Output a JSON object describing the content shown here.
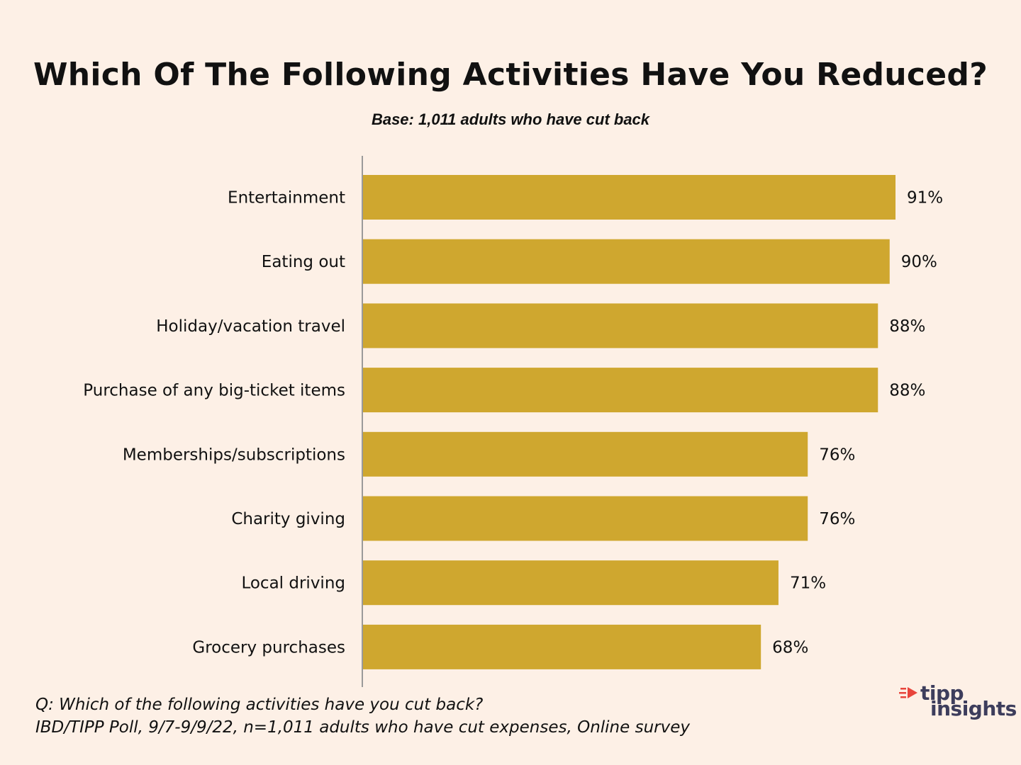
{
  "colors": {
    "background": "#fdf0e6",
    "bar": "#cfa72f",
    "axis": "#9a9a9a",
    "text": "#111111",
    "logo_text": "#3d3d5c",
    "logo_accent": "#e8453c"
  },
  "chart_data": {
    "type": "bar",
    "orientation": "horizontal",
    "title": "Which Of The Following Activities Have You Reduced?",
    "subtitle": "Base: 1,011 adults who have cut back",
    "categories": [
      "Entertainment",
      "Eating out",
      "Holiday/vacation travel",
      "Purchase of any big-ticket items",
      "Memberships/subscriptions",
      "Charity giving",
      "Local driving",
      "Grocery purchases"
    ],
    "values": [
      91,
      90,
      88,
      88,
      76,
      76,
      71,
      68
    ],
    "value_labels": [
      "91%",
      "90%",
      "88%",
      "88%",
      "76%",
      "76%",
      "71%",
      "68%"
    ],
    "xlim": [
      0,
      100
    ],
    "grid": false,
    "legend": "none"
  },
  "footnote": {
    "question": "Q:  Which of the following activities have you cut back?",
    "source": "IBD/TIPP Poll, 9/7-9/9/22, n=1,011 adults who have cut expenses, Online survey"
  },
  "logo": {
    "line1": "tipp",
    "line2": "insights"
  }
}
